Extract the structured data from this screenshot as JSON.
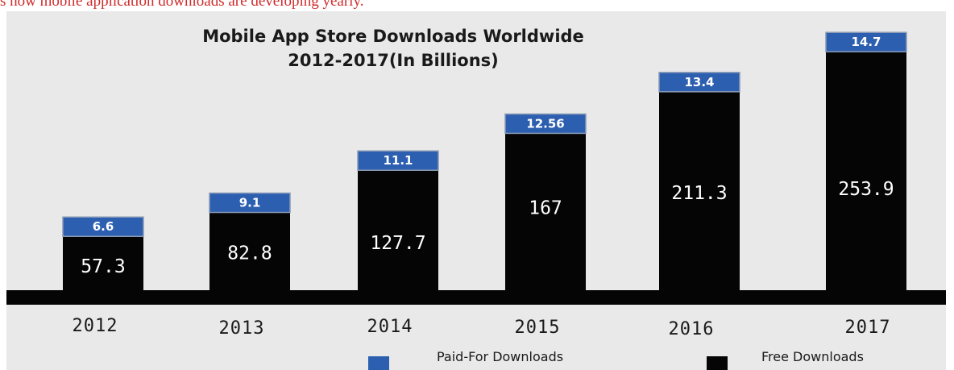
{
  "document_text": "s how mobile application downloads are developing yearly.",
  "colors": {
    "paid": "#2d5fb0",
    "free": "#050505",
    "baseline": "#050505",
    "background": "#e9e9e9",
    "bar_border": "#8a9bb5"
  },
  "chart_data": {
    "type": "bar",
    "stacked": true,
    "title": "Mobile App Store Downloads Worldwide",
    "subtitle": "2012-2017(In Billions)",
    "categories": [
      "2012",
      "2013",
      "2014",
      "2015",
      "2016",
      "2017"
    ],
    "series": [
      {
        "name": "Free Downloads",
        "values": [
          57.3,
          82.8,
          127.7,
          167,
          211.3,
          253.9
        ],
        "labels": [
          "57.3",
          "82.8",
          "127.7",
          "167",
          "211.3",
          "253.9"
        ]
      },
      {
        "name": "Paid-For Downloads",
        "values": [
          6.6,
          9.1,
          11.1,
          12.56,
          13.4,
          14.7
        ],
        "labels": [
          "6.6",
          "9.1",
          "11.1",
          "12.56",
          "13.4",
          "14.7"
        ]
      }
    ],
    "legend": [
      "Paid-For Downloads",
      "Free Downloads"
    ],
    "legend_placement": "bottom-right",
    "grid": false,
    "ylim": [
      0,
      270
    ]
  }
}
